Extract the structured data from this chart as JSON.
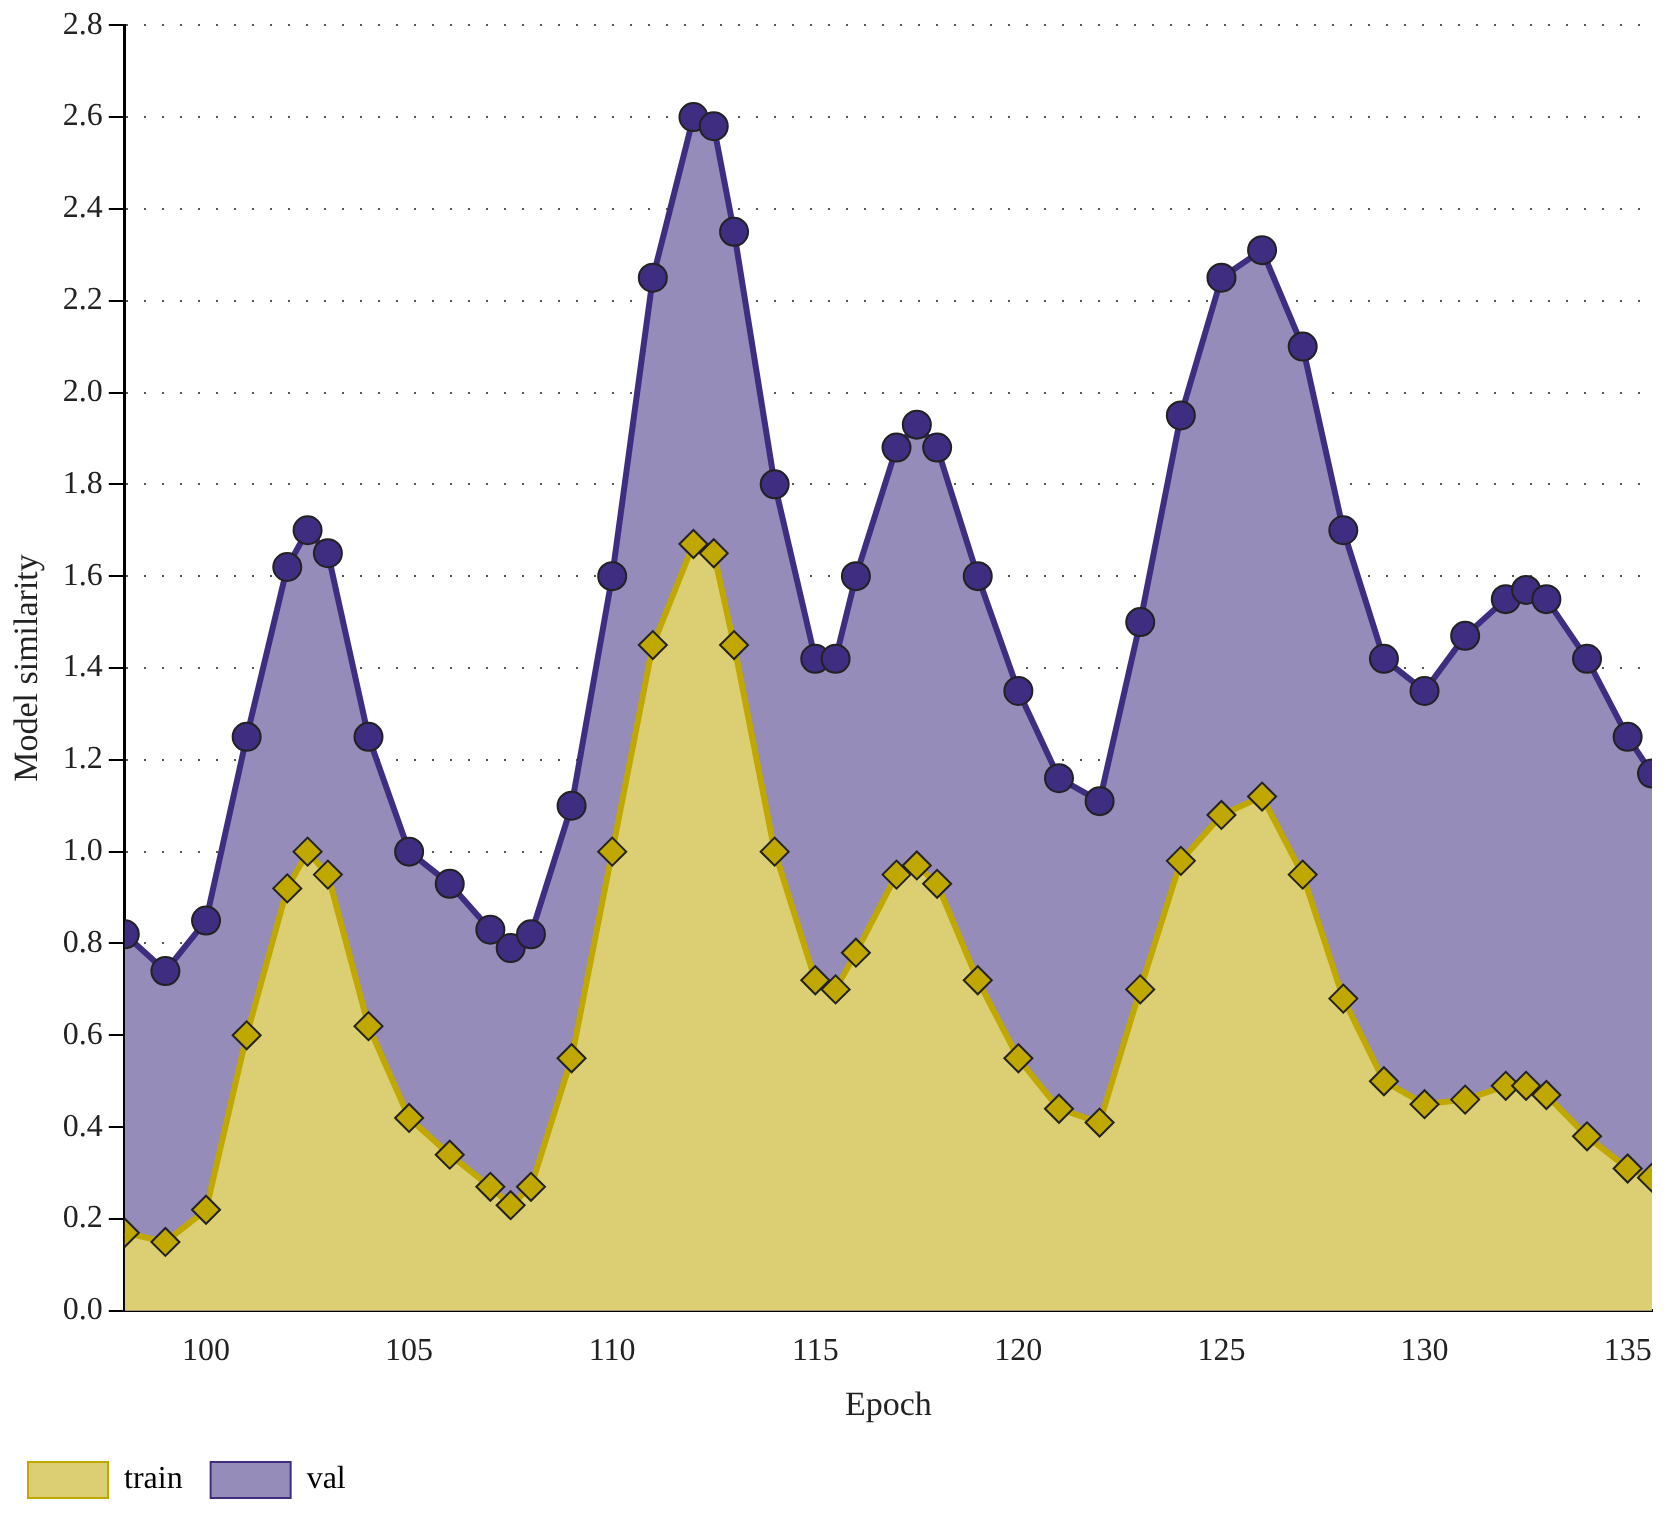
{
  "chart_data": {
    "type": "area",
    "xlabel": "Epoch",
    "ylabel": "Model similarity",
    "xlim": [
      98,
      135.6
    ],
    "xticks": [
      100,
      105,
      110,
      115,
      120,
      125,
      130,
      135
    ],
    "ylim": [
      0,
      2.8
    ],
    "yticks": [
      {
        "value": 0,
        "label": "0.0"
      },
      0.2,
      0.4,
      0.6,
      0.8,
      {
        "value": 1,
        "label": "1.0"
      },
      1.2,
      1.4,
      1.6,
      1.8,
      {
        "value": 2,
        "label": "2.0"
      },
      2.2,
      2.4,
      2.6,
      2.8
    ],
    "grid": "y",
    "legend": "bottom left",
    "x": [
      98,
      99,
      100,
      101,
      102,
      102.5,
      103,
      104,
      105,
      106,
      107,
      107.5,
      108,
      109,
      110,
      111,
      112,
      112.5,
      113,
      114,
      115,
      115.5,
      116,
      117,
      117.5,
      118,
      119,
      120,
      121,
      122,
      123,
      124,
      125,
      126,
      127,
      128,
      129,
      130,
      131,
      132,
      132.5,
      133,
      134,
      135,
      135.6
    ],
    "series": [
      {
        "name": "train",
        "color": "#c0a800",
        "marker": "diamond",
        "values": [
          0.17,
          0.15,
          0.22,
          0.6,
          0.92,
          1.0,
          0.95,
          0.62,
          0.42,
          0.34,
          0.27,
          0.23,
          0.27,
          0.55,
          1.0,
          1.45,
          1.67,
          1.65,
          1.45,
          1.0,
          0.72,
          0.7,
          0.78,
          0.95,
          0.97,
          0.93,
          0.72,
          0.55,
          0.44,
          0.41,
          0.7,
          0.98,
          1.08,
          1.12,
          0.95,
          0.68,
          0.5,
          0.45,
          0.46,
          0.49,
          0.49,
          0.47,
          0.38,
          0.31,
          0.29
        ]
      },
      {
        "name": "val",
        "color": "#3f2d82",
        "marker": "circle",
        "values": [
          0.82,
          0.74,
          0.85,
          1.25,
          1.62,
          1.7,
          1.65,
          1.25,
          1.0,
          0.93,
          0.83,
          0.79,
          0.82,
          1.1,
          1.6,
          2.25,
          2.6,
          2.58,
          2.35,
          1.8,
          1.42,
          1.42,
          1.6,
          1.88,
          1.93,
          1.88,
          1.6,
          1.35,
          1.16,
          1.11,
          1.5,
          1.95,
          2.25,
          2.31,
          2.1,
          1.7,
          1.42,
          1.35,
          1.47,
          1.55,
          1.57,
          1.55,
          1.42,
          1.25,
          1.17
        ]
      }
    ]
  }
}
